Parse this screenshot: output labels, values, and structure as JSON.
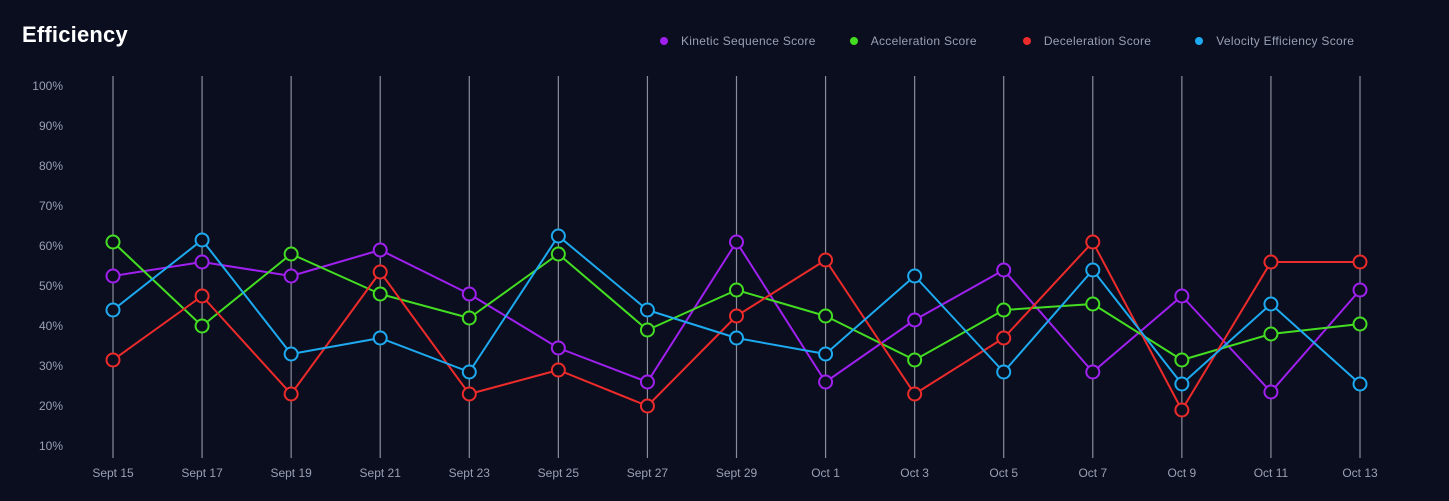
{
  "title": "Efficiency",
  "chart_data": {
    "type": "line",
    "title": "Efficiency",
    "x": [
      "Sept 15",
      "Sept 17",
      "Sept 19",
      "Sept 21",
      "Sept 23",
      "Sept 25",
      "Sept 27",
      "Sept 29",
      "Oct 1",
      "Oct 3",
      "Oct 5",
      "Oct 7",
      "Oct 9",
      "Oct 11",
      "Oct 13"
    ],
    "y_ticks": [
      "100%",
      "90%",
      "80%",
      "70%",
      "60%",
      "50%",
      "40%",
      "30%",
      "20%",
      "10%"
    ],
    "ylim": [
      10,
      100
    ],
    "grid": "vertical lines at each x category",
    "legend_position": "top-right",
    "series": [
      {
        "name": "Kinetic Sequence Score",
        "color": "#a020f0",
        "values": [
          52.5,
          56,
          52.5,
          59,
          48,
          34.5,
          26,
          61,
          26,
          41.5,
          54,
          28.5,
          47.5,
          23.5,
          49
        ]
      },
      {
        "name": "Acceleration Score",
        "color": "#44dd22",
        "values": [
          61,
          40,
          58,
          48,
          42,
          58,
          39,
          49,
          42.5,
          31.5,
          44,
          45.5,
          31.5,
          38,
          40.5
        ]
      },
      {
        "name": "Deceleration Score",
        "color": "#ee2b2b",
        "values": [
          31.5,
          47.5,
          23,
          53.5,
          23,
          29,
          20,
          42.5,
          56.5,
          23,
          37,
          61,
          19,
          56,
          56
        ]
      },
      {
        "name": "Velocity Efficiency Score",
        "color": "#1eaaf0",
        "values": [
          44,
          61.5,
          33,
          37,
          28.5,
          62.5,
          44,
          37,
          33,
          52.5,
          28.5,
          54,
          25.5,
          45.5,
          25.5
        ]
      }
    ]
  },
  "theme": {
    "background": "#0a0e1f",
    "gridline": "#8a8d99",
    "axis_text": "#9aa0b4"
  }
}
